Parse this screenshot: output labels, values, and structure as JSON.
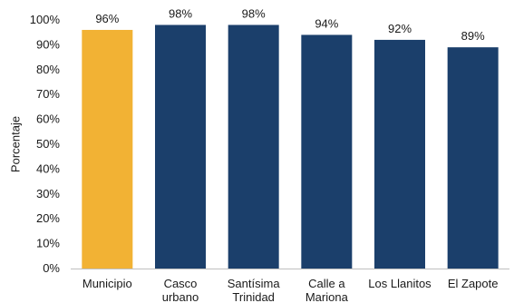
{
  "chart_data": {
    "type": "bar",
    "title": "",
    "xlabel": "",
    "ylabel": "Porcentaje",
    "ylim": [
      0,
      100
    ],
    "yticks": [
      0,
      10,
      20,
      30,
      40,
      50,
      60,
      70,
      80,
      90,
      100
    ],
    "ytick_suffix": "%",
    "grid": false,
    "categories": [
      [
        "Municipio"
      ],
      [
        "Casco",
        "urbano"
      ],
      [
        "Santísima",
        "Trinidad"
      ],
      [
        "Calle a",
        "Mariona"
      ],
      [
        "Los Llanitos"
      ],
      [
        "El Zapote"
      ]
    ],
    "values": [
      96,
      98,
      98,
      94,
      92,
      89
    ],
    "data_labels": [
      "96%",
      "98%",
      "98%",
      "94%",
      "92%",
      "89%"
    ],
    "colors": [
      "#F2B234",
      "#1B3F6B",
      "#1B3F6B",
      "#1B3F6B",
      "#1B3F6B",
      "#1B3F6B"
    ]
  }
}
